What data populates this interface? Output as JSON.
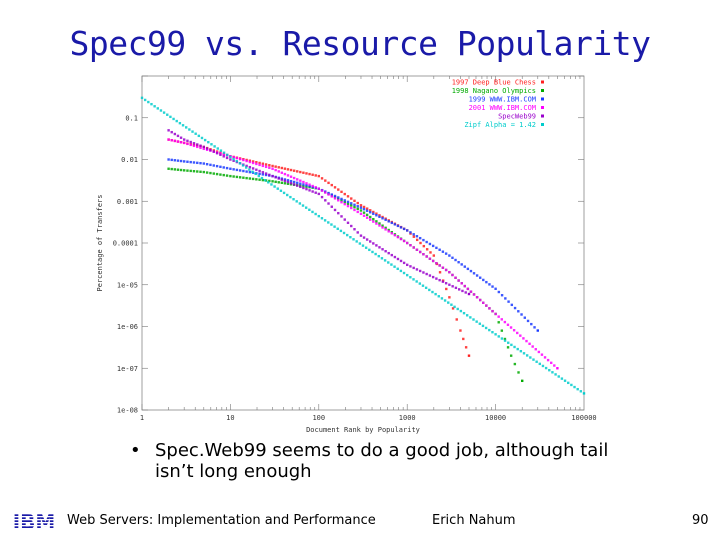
{
  "slide": {
    "title": "Spec99 vs. Resource Popularity",
    "bullet_marker": "•",
    "bullet_text": "Spec.Web99 seems to do a good job, although tail isn’t long enough",
    "footer_logo": "IBM",
    "footer_title": "Web Servers: Implementation and Performance",
    "footer_author": "Erich Nahum",
    "page_number": "90"
  },
  "chart_data": {
    "type": "scatter",
    "title": "",
    "xlabel": "Document Rank by Popularity",
    "ylabel": "Percentage of Transfers",
    "xscale": "log",
    "yscale": "log",
    "xlim": [
      1,
      100000
    ],
    "ylim": [
      1e-08,
      1
    ],
    "x_ticks": [
      "1",
      "10",
      "100",
      "1000",
      "10000",
      "100000"
    ],
    "y_ticks": [
      "1e-08",
      "1e-07",
      "1e-06",
      "1e-05",
      "0.0001",
      "0.001",
      "0.01",
      "0.1"
    ],
    "legend_position": "top-right",
    "series": [
      {
        "name": "1997 Deep Blue Chess",
        "color": "#ff2020",
        "x": [
          2,
          3,
          5,
          10,
          30,
          100,
          300,
          1000,
          2000,
          3000,
          4000,
          5000
        ],
        "y": [
          0.03,
          0.025,
          0.02,
          0.012,
          0.007,
          0.004,
          0.0008,
          0.0002,
          5e-05,
          5e-06,
          8e-07,
          2e-07
        ]
      },
      {
        "name": "1998 Nagano Olympics",
        "color": "#00aa00",
        "x": [
          2,
          3,
          5,
          10,
          30,
          100,
          300,
          1000,
          3000,
          10000,
          15000,
          20000
        ],
        "y": [
          0.006,
          0.0055,
          0.005,
          0.004,
          0.003,
          0.002,
          0.0006,
          0.0001,
          2e-05,
          2e-06,
          2e-07,
          5e-08
        ]
      },
      {
        "name": "1999 WWW.IBM.COM",
        "color": "#1a3aff",
        "x": [
          2,
          3,
          5,
          10,
          30,
          100,
          300,
          1000,
          3000,
          10000,
          30000
        ],
        "y": [
          0.01,
          0.009,
          0.008,
          0.006,
          0.004,
          0.002,
          0.0007,
          0.0002,
          5e-05,
          8e-06,
          8e-07
        ]
      },
      {
        "name": "2001 WWW.IBM.COM",
        "color": "#ff00ff",
        "x": [
          2,
          3,
          5,
          10,
          30,
          100,
          300,
          1000,
          3000,
          10000,
          50000
        ],
        "y": [
          0.03,
          0.025,
          0.018,
          0.012,
          0.006,
          0.002,
          0.0005,
          0.0001,
          2e-05,
          2e-06,
          1e-07
        ]
      },
      {
        "name": "SpecWeb99",
        "color": "#9900cc",
        "x": [
          2,
          3,
          5,
          10,
          30,
          100,
          300,
          1000,
          3000,
          5000
        ],
        "y": [
          0.05,
          0.03,
          0.02,
          0.01,
          0.004,
          0.0015,
          0.00015,
          3e-05,
          1e-05,
          6e-06
        ]
      },
      {
        "name": "Zipf Alpha = 1.42",
        "color": "#00cccc",
        "x": [
          1,
          10,
          100,
          1000,
          10000,
          100000
        ],
        "y": [
          0.3,
          0.0115,
          0.00044,
          1.7e-05,
          6.5e-07,
          2.5e-08
        ]
      }
    ]
  }
}
